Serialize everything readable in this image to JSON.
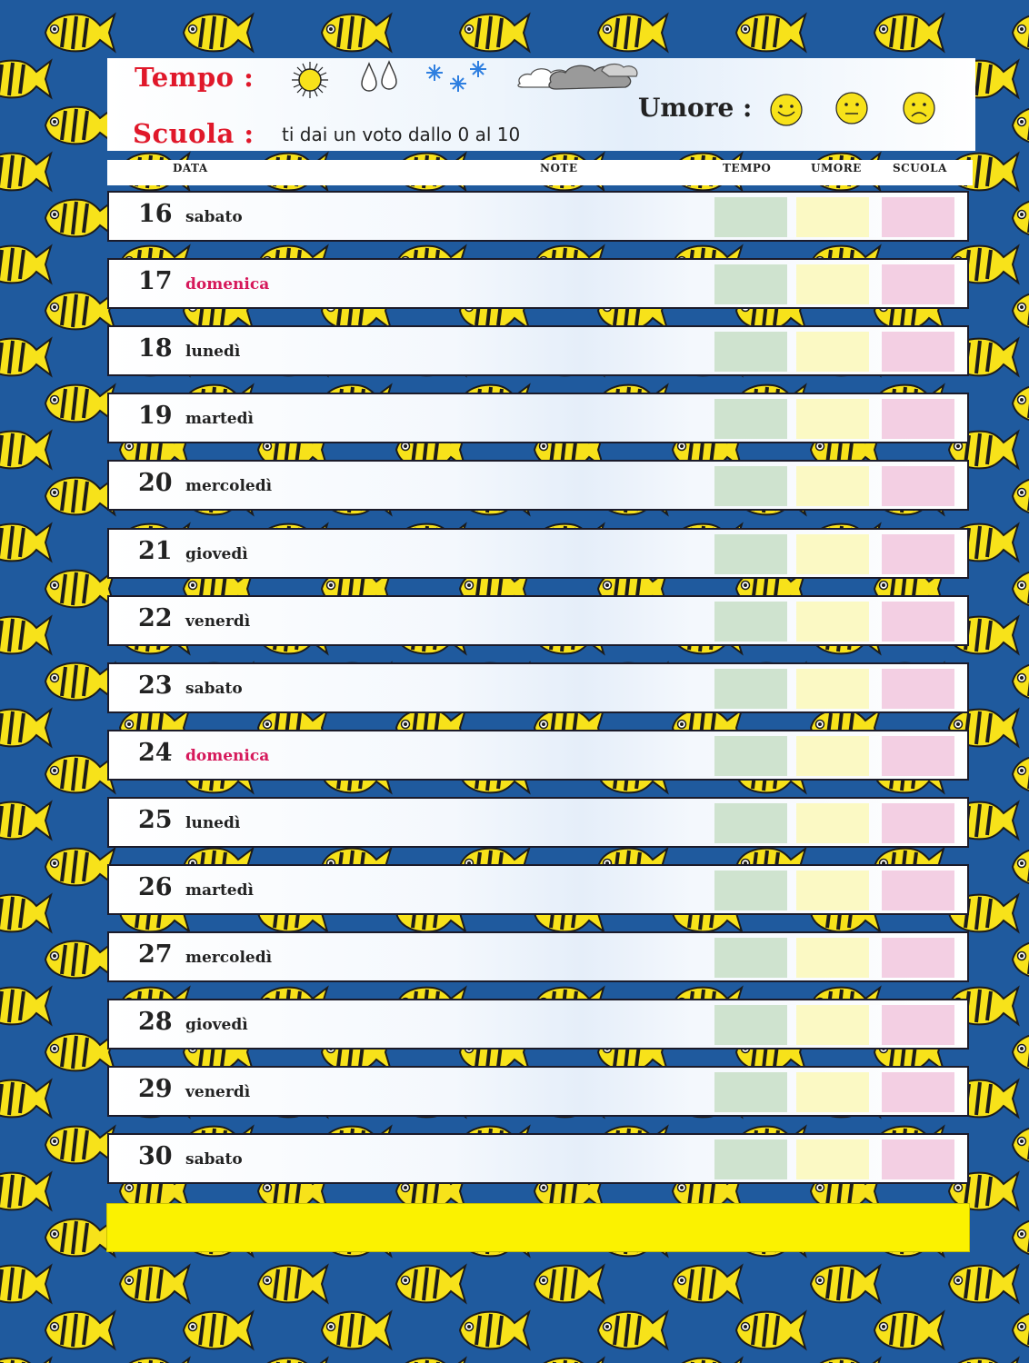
{
  "header": {
    "tempo_label": "Tempo :",
    "scuola_label": "Scuola :",
    "scuola_description": "ti dai un voto dallo 0 al 10",
    "umore_label": "Umore :",
    "weather_icons": [
      "sun-icon",
      "raindrops-icon",
      "snowflakes-icon",
      "clouds-icon"
    ],
    "mood_icons": [
      "happy-face-icon",
      "neutral-face-icon",
      "sad-face-icon"
    ]
  },
  "columns": {
    "data": "DATA",
    "note": "NOTE",
    "tempo": "TEMPO",
    "umore": "UMORE",
    "scuola": "SCUOLA"
  },
  "days": [
    {
      "num": "16",
      "name": "sabato",
      "sunday": false
    },
    {
      "num": "17",
      "name": "domenica",
      "sunday": true
    },
    {
      "num": "18",
      "name": "lunedì",
      "sunday": false
    },
    {
      "num": "19",
      "name": "martedì",
      "sunday": false
    },
    {
      "num": "20",
      "name": "mercoledì",
      "sunday": false
    },
    {
      "num": "21",
      "name": "giovedì",
      "sunday": false
    },
    {
      "num": "22",
      "name": "venerdì",
      "sunday": false
    },
    {
      "num": "23",
      "name": "sabato",
      "sunday": false
    },
    {
      "num": "24",
      "name": "domenica",
      "sunday": true
    },
    {
      "num": "25",
      "name": "lunedì",
      "sunday": false
    },
    {
      "num": "26",
      "name": "martedì",
      "sunday": false
    },
    {
      "num": "27",
      "name": "mercoledì",
      "sunday": false
    },
    {
      "num": "28",
      "name": "giovedì",
      "sunday": false
    },
    {
      "num": "29",
      "name": "venerdì",
      "sunday": false
    },
    {
      "num": "30",
      "name": "sabato",
      "sunday": false
    }
  ],
  "colors": {
    "background": "#1f5a9e",
    "fish": "#f7e21a",
    "label_red": "#e0182a",
    "sunday": "#d6195b",
    "tempo_swatch": "#cfe3cf",
    "umore_swatch": "#fbf9c4",
    "scuola_swatch": "#f3cfe3",
    "footer_bar": "#fbf200"
  }
}
